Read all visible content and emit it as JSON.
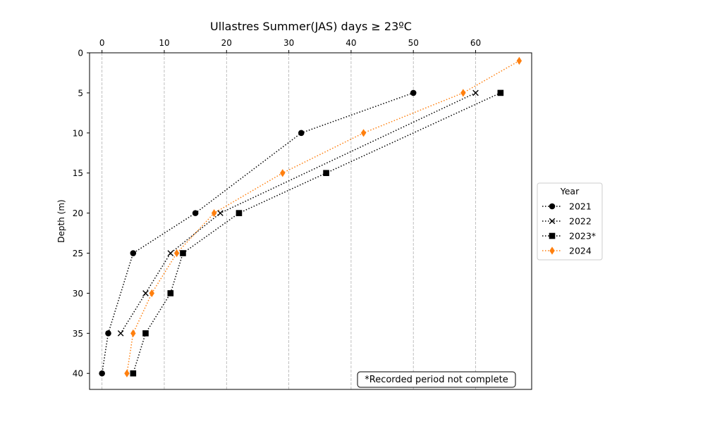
{
  "chart_data": {
    "type": "line",
    "title": "Ullastres Summer(JAS) days ≥ 23ºC",
    "xlabel": "",
    "ylabel": "Depth (m)",
    "xlim": [
      -2,
      69
    ],
    "ylim": [
      42,
      0
    ],
    "x_axis_position": "top",
    "y_inverted": true,
    "xticks": [
      0,
      10,
      20,
      30,
      40,
      50,
      60
    ],
    "yticks": [
      0,
      5,
      10,
      15,
      20,
      25,
      30,
      35,
      40
    ],
    "grid": "vertical dashed",
    "legend": {
      "title": "Year",
      "placement": "outside-right"
    },
    "annotation": "*Recorded period not complete",
    "series": [
      {
        "name": "2021",
        "color": "#000000",
        "marker": "circle",
        "linestyle": "dotted",
        "points": [
          [
            50,
            5
          ],
          [
            32,
            10
          ],
          [
            15,
            20
          ],
          [
            5,
            25
          ],
          [
            1,
            35
          ],
          [
            0,
            40
          ]
        ]
      },
      {
        "name": "2022",
        "color": "#000000",
        "marker": "x",
        "linestyle": "dotted",
        "points": [
          [
            60,
            5
          ],
          [
            19,
            20
          ],
          [
            11,
            25
          ],
          [
            7,
            30
          ],
          [
            3,
            35
          ]
        ]
      },
      {
        "name": "2023*",
        "color": "#000000",
        "marker": "square",
        "linestyle": "dotted",
        "points": [
          [
            64,
            5
          ],
          [
            36,
            15
          ],
          [
            22,
            20
          ],
          [
            13,
            25
          ],
          [
            11,
            30
          ],
          [
            7,
            35
          ],
          [
            5,
            40
          ]
        ]
      },
      {
        "name": "2024",
        "color": "#ff7f0e",
        "marker": "diamond",
        "linestyle": "dotted",
        "points": [
          [
            67,
            1
          ],
          [
            58,
            5
          ],
          [
            42,
            10
          ],
          [
            29,
            15
          ],
          [
            18,
            20
          ],
          [
            12,
            25
          ],
          [
            8,
            30
          ],
          [
            5,
            35
          ],
          [
            4,
            40
          ]
        ]
      }
    ]
  }
}
